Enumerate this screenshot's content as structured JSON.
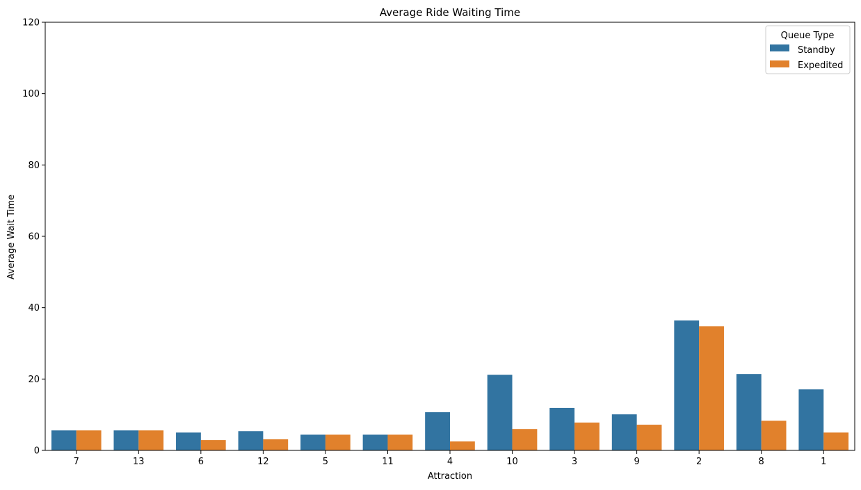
{
  "chart_data": {
    "type": "bar",
    "title": "Average Ride Waiting Time",
    "xlabel": "Attraction",
    "ylabel": "Average Wait Time",
    "categories": [
      "7",
      "13",
      "6",
      "12",
      "5",
      "11",
      "4",
      "10",
      "3",
      "9",
      "2",
      "8",
      "1"
    ],
    "series": [
      {
        "name": "Standby",
        "color": "#3274a1",
        "values": [
          5.6,
          5.6,
          5.0,
          5.4,
          4.4,
          4.4,
          10.7,
          21.2,
          11.9,
          10.1,
          36.4,
          21.4,
          17.1
        ]
      },
      {
        "name": "Expedited",
        "color": "#e1812c",
        "values": [
          5.6,
          5.6,
          2.9,
          3.1,
          4.4,
          4.4,
          2.5,
          6.0,
          7.8,
          7.2,
          34.8,
          8.3,
          5.0
        ]
      }
    ],
    "ylim": [
      0,
      120
    ],
    "yticks": [
      0,
      20,
      40,
      60,
      80,
      100,
      120
    ],
    "legend": {
      "title": "Queue Type",
      "position": "top-right"
    },
    "grid": false
  }
}
